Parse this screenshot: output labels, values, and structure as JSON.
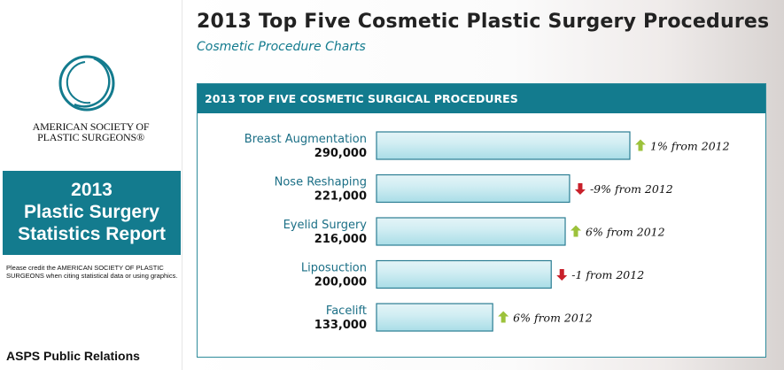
{
  "sidebar": {
    "org_name_line1": "AMERICAN SOCIETY OF",
    "org_name_line2": "PLASTIC SURGEONS®",
    "report_line1": "2013",
    "report_line2": "Plastic Surgery",
    "report_line3": "Statistics Report",
    "credit_text": "Please credit the AMERICAN SOCIETY OF PLASTIC SURGEONS when citing statistical data or using graphics.",
    "pr_label": "ASPS Public Relations"
  },
  "page": {
    "title": "2013 Top Five Cosmetic Plastic Surgery Procedures",
    "subtitle": "Cosmetic Procedure Charts"
  },
  "colors": {
    "brand": "#137b8e",
    "up": "#9cc23b",
    "down": "#c8202a"
  },
  "chart_data": {
    "type": "bar",
    "orientation": "horizontal",
    "title": "2013 TOP FIVE COSMETIC SURGICAL PROCEDURES",
    "categories": [
      "Breast Augmentation",
      "Nose Reshaping",
      "Eyelid Surgery",
      "Liposuction",
      "Facelift"
    ],
    "values": [
      290000,
      221000,
      216000,
      200000,
      133000
    ],
    "value_labels": [
      "290,000",
      "221,000",
      "216,000",
      "200,000",
      "133,000"
    ],
    "changes": [
      {
        "direction": "up",
        "text": "1% from 2012"
      },
      {
        "direction": "down",
        "text": "-9% from 2012"
      },
      {
        "direction": "up",
        "text": "6% from 2012"
      },
      {
        "direction": "down",
        "text": "-1 from 2012"
      },
      {
        "direction": "up",
        "text": "6% from 2012"
      }
    ],
    "xlim": [
      0,
      290000
    ],
    "grid": false,
    "legend": "none"
  }
}
